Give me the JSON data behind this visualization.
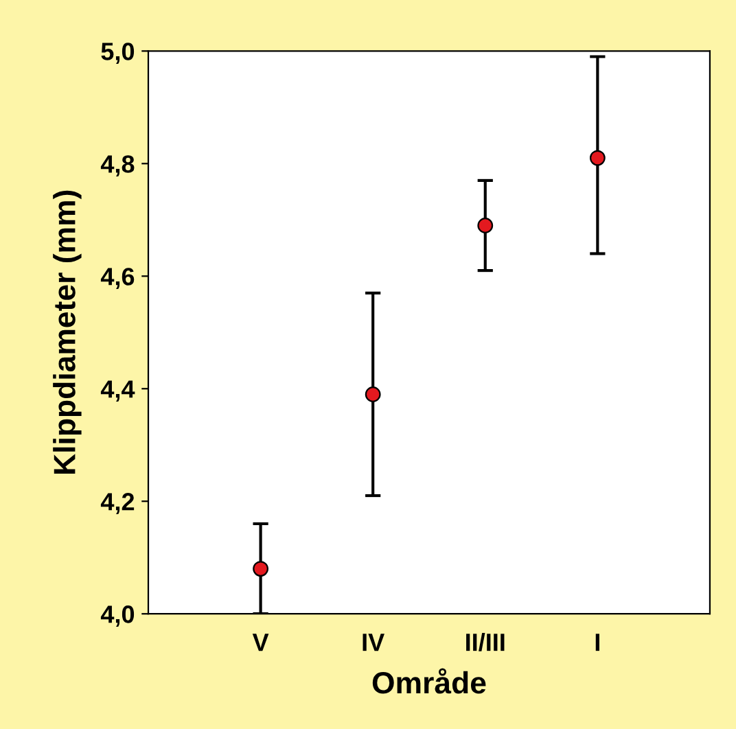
{
  "chart_data": {
    "type": "scatter",
    "xlabel": "Område",
    "ylabel": "Klippdiameter (mm)",
    "categories": [
      "V",
      "IV",
      "II/III",
      "I"
    ],
    "series": [
      {
        "color": "#e3191f",
        "values": [
          4.08,
          4.39,
          4.69,
          4.81
        ],
        "errors": [
          [
            4.0,
            4.16
          ],
          [
            4.21,
            4.57
          ],
          [
            4.61,
            4.77
          ],
          [
            4.64,
            4.99
          ]
        ]
      }
    ],
    "ylim": [
      4.0,
      5.0
    ],
    "yticks": [
      {
        "value": 4.0,
        "label": "4,0"
      },
      {
        "value": 4.2,
        "label": "4,2"
      },
      {
        "value": 4.4,
        "label": "4,4"
      },
      {
        "value": 4.6,
        "label": "4,6"
      },
      {
        "value": 4.8,
        "label": "4,8"
      },
      {
        "value": 5.0,
        "label": "5,0"
      }
    ],
    "marker": "circle",
    "grid": false
  }
}
